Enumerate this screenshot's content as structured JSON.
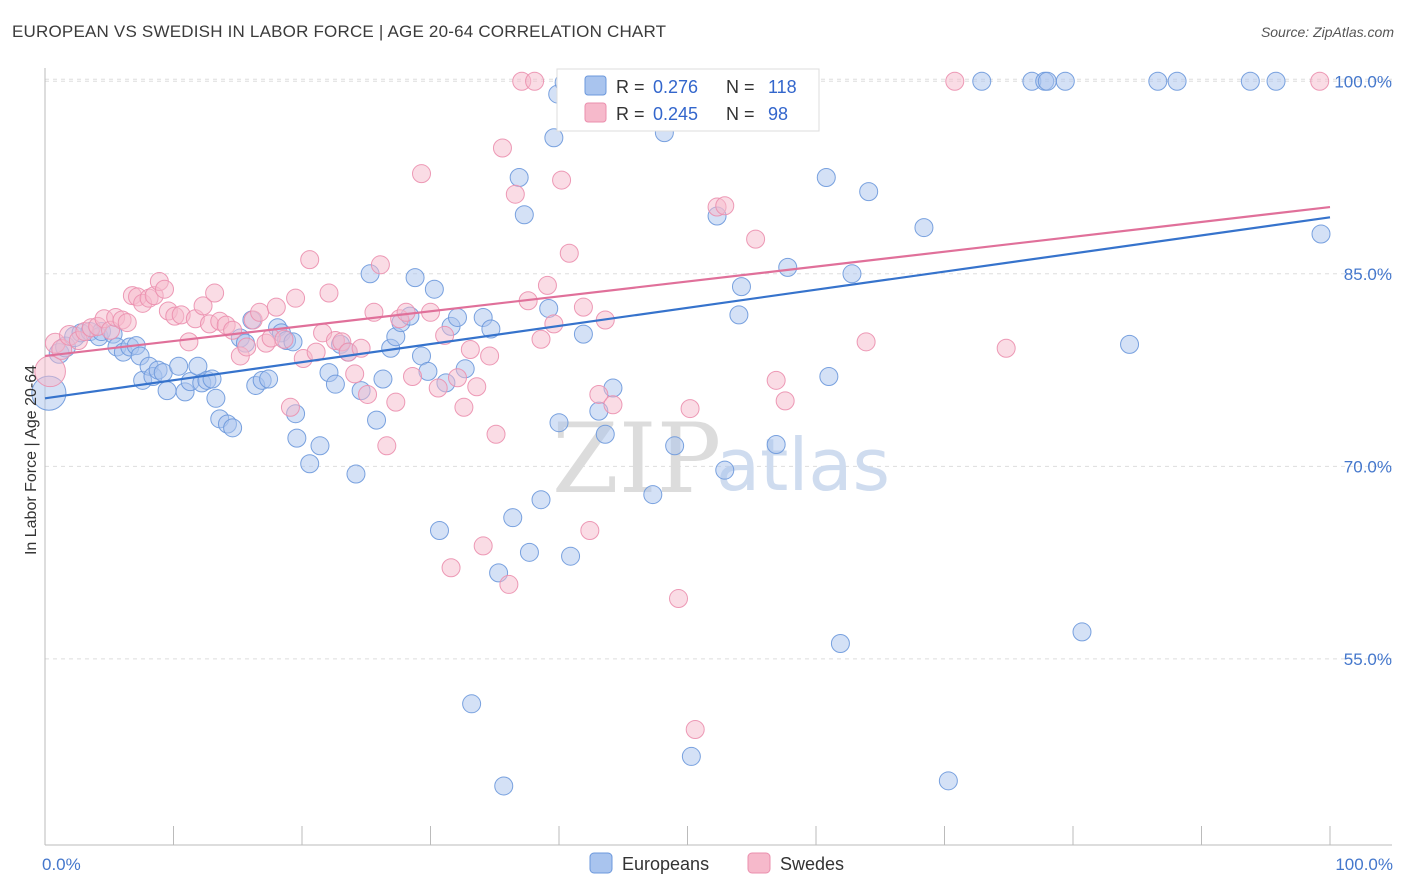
{
  "title": "EUROPEAN VS SWEDISH IN LABOR FORCE | AGE 20-64 CORRELATION CHART",
  "source": "Source: ZipAtlas.com",
  "watermark": {
    "zip": "ZIP",
    "atlas": "atlas"
  },
  "colors": {
    "blue_fill": "#a9c4ee",
    "blue_stroke": "#6c98dc",
    "blue_line": "#3673cc",
    "pink_fill": "#f6b9cb",
    "pink_stroke": "#eb8fae",
    "pink_line": "#e0709a",
    "grid": "#dddddd",
    "axis_text": "#4477cc"
  },
  "legend": {
    "r_label": "R =",
    "n_label": "N =",
    "blue": {
      "r": "0.276",
      "n": "118"
    },
    "pink": {
      "r": "0.245",
      "n": "98"
    }
  },
  "chart_data": {
    "type": "scatter",
    "title": "EUROPEAN VS SWEDISH IN LABOR FORCE | AGE 20-64 CORRELATION CHART",
    "xlabel": "",
    "ylabel": "In Labor Force | Age 20-64",
    "xlim": [
      0,
      100
    ],
    "ylim": [
      40.5,
      101.5
    ],
    "x_tick_labels": [
      "0.0%",
      "100.0%"
    ],
    "y_ticks": [
      55,
      70,
      85,
      100
    ],
    "y_tick_labels": [
      "55.0%",
      "70.0%",
      "85.0%",
      "100.0%"
    ],
    "grid": true,
    "legend_position": "top-center",
    "series": [
      {
        "name": "Europeans",
        "color": "#a9c4ee",
        "trend": {
          "x": [
            0,
            100
          ],
          "y": [
            75.3,
            89.4
          ]
        },
        "points": [
          [
            0.3,
            75.7,
            1.9
          ],
          [
            1.1,
            78.8,
            1.1
          ],
          [
            1.6,
            79.3,
            1.1
          ],
          [
            2.3,
            80.1,
            1.1
          ],
          [
            2.8,
            80.4,
            1.0
          ],
          [
            3.5,
            80.5,
            1.0
          ],
          [
            4.2,
            80.1,
            1.0
          ],
          [
            4.4,
            80.5,
            1.0
          ],
          [
            5.3,
            80.3,
            1.0
          ],
          [
            5.6,
            79.3,
            1.0
          ],
          [
            6.1,
            78.9,
            1.0
          ],
          [
            6.6,
            79.3,
            1.0
          ],
          [
            7.1,
            79.4,
            1.0
          ],
          [
            7.4,
            78.6,
            1.0
          ],
          [
            7.6,
            76.7,
            1.0
          ],
          [
            8.1,
            77.8,
            1.0
          ],
          [
            8.4,
            77.0,
            1.0
          ],
          [
            8.8,
            77.5,
            1.0
          ],
          [
            9.2,
            77.3,
            1.0
          ],
          [
            9.5,
            75.9,
            1.0
          ],
          [
            10.4,
            77.8,
            1.0
          ],
          [
            10.9,
            75.8,
            1.0
          ],
          [
            11.3,
            76.6,
            1.0
          ],
          [
            11.9,
            77.8,
            1.0
          ],
          [
            12.2,
            76.5,
            1.0
          ],
          [
            12.6,
            76.7,
            1.0
          ],
          [
            13.0,
            76.8,
            1.0
          ],
          [
            13.3,
            75.3,
            1.0
          ],
          [
            13.6,
            73.7,
            1.0
          ],
          [
            14.2,
            73.3,
            1.0
          ],
          [
            14.6,
            73.0,
            1.0
          ],
          [
            15.2,
            80.0,
            1.0
          ],
          [
            15.6,
            79.6,
            1.0
          ],
          [
            16.1,
            81.4,
            1.0
          ],
          [
            16.4,
            76.3,
            1.0
          ],
          [
            16.9,
            76.7,
            1.0
          ],
          [
            17.4,
            76.8,
            1.0
          ],
          [
            18.1,
            80.8,
            1.0
          ],
          [
            18.4,
            80.4,
            1.0
          ],
          [
            18.8,
            79.8,
            1.0
          ],
          [
            19.3,
            79.7,
            1.0
          ],
          [
            19.5,
            74.1,
            1.0
          ],
          [
            19.6,
            72.2,
            1.0
          ],
          [
            20.6,
            70.2,
            1.0
          ],
          [
            21.4,
            71.6,
            1.0
          ],
          [
            22.1,
            77.3,
            1.0
          ],
          [
            22.6,
            76.4,
            1.0
          ],
          [
            23.0,
            79.5,
            1.0
          ],
          [
            23.6,
            78.9,
            1.0
          ],
          [
            24.2,
            69.4,
            1.0
          ],
          [
            24.6,
            75.9,
            1.0
          ],
          [
            25.3,
            85.0,
            1.0
          ],
          [
            25.8,
            73.6,
            1.0
          ],
          [
            26.3,
            76.8,
            1.0
          ],
          [
            26.9,
            79.2,
            1.0
          ],
          [
            27.3,
            80.1,
            1.0
          ],
          [
            27.7,
            81.2,
            1.0
          ],
          [
            28.4,
            81.7,
            1.0
          ],
          [
            28.8,
            84.7,
            1.0
          ],
          [
            29.3,
            78.6,
            1.0
          ],
          [
            29.8,
            77.4,
            1.0
          ],
          [
            30.3,
            83.8,
            1.0
          ],
          [
            30.7,
            65.0,
            1.0
          ],
          [
            31.2,
            76.5,
            1.0
          ],
          [
            31.6,
            80.9,
            1.0
          ],
          [
            32.1,
            81.6,
            1.0
          ],
          [
            32.7,
            77.6,
            1.0
          ],
          [
            33.2,
            51.5,
            1.0
          ],
          [
            34.1,
            81.6,
            1.0
          ],
          [
            34.7,
            80.7,
            1.0
          ],
          [
            35.3,
            61.7,
            1.0
          ],
          [
            35.7,
            45.1,
            1.0
          ],
          [
            36.4,
            66.0,
            1.0
          ],
          [
            36.9,
            92.5,
            1.0
          ],
          [
            37.3,
            89.6,
            1.0
          ],
          [
            37.7,
            63.3,
            1.0
          ],
          [
            38.6,
            67.4,
            1.0
          ],
          [
            39.2,
            82.3,
            1.0
          ],
          [
            39.6,
            95.6,
            1.0
          ],
          [
            39.9,
            99.0,
            1.0
          ],
          [
            40.4,
            99.9,
            1.0
          ],
          [
            40.9,
            63.0,
            1.0
          ],
          [
            41.4,
            100.0,
            1.0
          ],
          [
            41.9,
            80.3,
            1.0
          ],
          [
            42.4,
            100.0,
            1.0
          ],
          [
            43.1,
            74.3,
            1.0
          ],
          [
            43.6,
            72.5,
            1.0
          ],
          [
            44.2,
            76.1,
            1.0
          ],
          [
            45.3,
            97.8,
            1.0
          ],
          [
            46.1,
            98.3,
            1.0
          ],
          [
            46.4,
            100.0,
            1.0
          ],
          [
            47.3,
            67.8,
            1.0
          ],
          [
            48.2,
            96.0,
            1.0
          ],
          [
            49.0,
            71.6,
            1.0
          ],
          [
            49.4,
            100.0,
            1.0
          ],
          [
            50.3,
            47.4,
            1.0
          ],
          [
            52.3,
            89.5,
            1.0
          ],
          [
            52.9,
            69.7,
            1.0
          ],
          [
            54.2,
            84.0,
            1.0
          ],
          [
            56.9,
            71.7,
            1.0
          ],
          [
            57.8,
            85.5,
            1.0
          ],
          [
            60.8,
            92.5,
            1.0
          ],
          [
            61.9,
            56.2,
            1.0
          ],
          [
            62.8,
            85.0,
            1.0
          ],
          [
            64.1,
            91.4,
            1.0
          ],
          [
            68.4,
            88.6,
            1.0
          ],
          [
            70.3,
            45.5,
            1.0
          ],
          [
            72.9,
            100.0,
            1.0
          ],
          [
            76.8,
            100.0,
            1.0
          ],
          [
            77.8,
            100.0,
            1.0
          ],
          [
            78.0,
            100.0,
            1.0
          ],
          [
            79.4,
            100.0,
            1.0
          ],
          [
            80.7,
            57.1,
            1.0
          ],
          [
            84.4,
            79.5,
            1.0
          ],
          [
            86.6,
            100.0,
            1.0
          ],
          [
            88.1,
            100.0,
            1.0
          ],
          [
            93.8,
            100.0,
            1.0
          ],
          [
            95.8,
            100.0,
            1.0
          ],
          [
            99.3,
            88.1,
            1.0
          ],
          [
            40.0,
            73.4,
            1.0
          ],
          [
            54.0,
            81.8,
            1.0
          ],
          [
            61.0,
            77.0,
            1.0
          ]
        ]
      },
      {
        "name": "Swedes",
        "color": "#f6b9cb",
        "trend": {
          "x": [
            0,
            100
          ],
          "y": [
            78.6,
            90.2
          ]
        },
        "points": [
          [
            0.4,
            77.4,
            1.7
          ],
          [
            0.8,
            79.6,
            1.1
          ],
          [
            1.3,
            79.1,
            1.1
          ],
          [
            1.9,
            80.2,
            1.1
          ],
          [
            2.6,
            79.8,
            1.0
          ],
          [
            3.1,
            80.5,
            1.0
          ],
          [
            3.6,
            80.8,
            1.0
          ],
          [
            4.1,
            80.9,
            1.0
          ],
          [
            4.6,
            81.5,
            1.0
          ],
          [
            5.1,
            80.6,
            1.0
          ],
          [
            5.5,
            81.6,
            1.0
          ],
          [
            6.0,
            81.4,
            1.0
          ],
          [
            6.4,
            81.2,
            1.0
          ],
          [
            6.8,
            83.3,
            1.0
          ],
          [
            7.2,
            83.2,
            1.0
          ],
          [
            7.6,
            82.7,
            1.0
          ],
          [
            8.1,
            83.1,
            1.0
          ],
          [
            8.5,
            83.3,
            1.0
          ],
          [
            8.9,
            84.4,
            1.0
          ],
          [
            9.3,
            83.8,
            1.0
          ],
          [
            9.6,
            82.1,
            1.0
          ],
          [
            10.1,
            81.7,
            1.0
          ],
          [
            10.6,
            81.8,
            1.0
          ],
          [
            11.2,
            79.7,
            1.0
          ],
          [
            11.7,
            81.5,
            1.0
          ],
          [
            12.3,
            82.5,
            1.0
          ],
          [
            12.8,
            81.1,
            1.0
          ],
          [
            13.2,
            83.5,
            1.0
          ],
          [
            13.6,
            81.3,
            1.0
          ],
          [
            14.1,
            81.0,
            1.0
          ],
          [
            14.6,
            80.6,
            1.0
          ],
          [
            15.2,
            78.6,
            1.0
          ],
          [
            15.7,
            79.3,
            1.0
          ],
          [
            16.2,
            81.4,
            1.0
          ],
          [
            16.7,
            82.0,
            1.0
          ],
          [
            17.2,
            79.6,
            1.0
          ],
          [
            17.6,
            80.0,
            1.0
          ],
          [
            18.0,
            82.4,
            1.0
          ],
          [
            18.6,
            79.9,
            1.0
          ],
          [
            19.1,
            74.6,
            1.0
          ],
          [
            19.5,
            83.1,
            1.0
          ],
          [
            20.1,
            78.4,
            1.0
          ],
          [
            20.6,
            86.1,
            1.0
          ],
          [
            21.1,
            78.9,
            1.0
          ],
          [
            21.6,
            80.4,
            1.0
          ],
          [
            22.1,
            83.5,
            1.0
          ],
          [
            22.6,
            79.8,
            1.0
          ],
          [
            23.1,
            79.7,
            1.0
          ],
          [
            23.6,
            78.9,
            1.0
          ],
          [
            24.1,
            77.2,
            1.0
          ],
          [
            24.6,
            79.2,
            1.0
          ],
          [
            25.1,
            75.6,
            1.0
          ],
          [
            25.6,
            82.0,
            1.0
          ],
          [
            26.1,
            85.7,
            1.0
          ],
          [
            26.6,
            71.6,
            1.0
          ],
          [
            27.3,
            75.0,
            1.0
          ],
          [
            27.6,
            81.5,
            1.0
          ],
          [
            28.1,
            82.0,
            1.0
          ],
          [
            28.6,
            77.0,
            1.0
          ],
          [
            29.3,
            92.8,
            1.0
          ],
          [
            30.0,
            82.0,
            1.0
          ],
          [
            30.6,
            76.1,
            1.0
          ],
          [
            31.1,
            80.2,
            1.0
          ],
          [
            31.6,
            62.1,
            1.0
          ],
          [
            32.1,
            76.9,
            1.0
          ],
          [
            32.6,
            74.6,
            1.0
          ],
          [
            33.1,
            79.1,
            1.0
          ],
          [
            33.6,
            76.2,
            1.0
          ],
          [
            34.1,
            63.8,
            1.0
          ],
          [
            34.6,
            78.6,
            1.0
          ],
          [
            35.1,
            72.5,
            1.0
          ],
          [
            35.6,
            94.8,
            1.0
          ],
          [
            36.1,
            60.8,
            1.0
          ],
          [
            36.6,
            91.2,
            1.0
          ],
          [
            37.1,
            100.0,
            1.0
          ],
          [
            37.6,
            82.9,
            1.0
          ],
          [
            38.1,
            100.0,
            1.0
          ],
          [
            38.6,
            79.9,
            1.0
          ],
          [
            39.1,
            84.1,
            1.0
          ],
          [
            39.6,
            81.1,
            1.0
          ],
          [
            40.2,
            92.3,
            1.0
          ],
          [
            40.8,
            86.6,
            1.0
          ],
          [
            41.3,
            100.0,
            1.0
          ],
          [
            41.9,
            82.4,
            1.0
          ],
          [
            42.4,
            65.0,
            1.0
          ],
          [
            43.1,
            75.6,
            1.0
          ],
          [
            43.6,
            81.4,
            1.0
          ],
          [
            44.2,
            74.8,
            1.0
          ],
          [
            49.3,
            59.7,
            1.0
          ],
          [
            50.2,
            74.5,
            1.0
          ],
          [
            50.6,
            49.5,
            1.0
          ],
          [
            52.3,
            90.2,
            1.0
          ],
          [
            52.9,
            90.3,
            1.0
          ],
          [
            55.3,
            87.7,
            1.0
          ],
          [
            56.9,
            76.7,
            1.0
          ],
          [
            57.6,
            75.1,
            1.0
          ],
          [
            63.9,
            79.7,
            1.0
          ],
          [
            70.8,
            100.0,
            1.0
          ],
          [
            74.8,
            79.2,
            1.0
          ],
          [
            99.2,
            100.0,
            1.0
          ]
        ]
      }
    ]
  }
}
